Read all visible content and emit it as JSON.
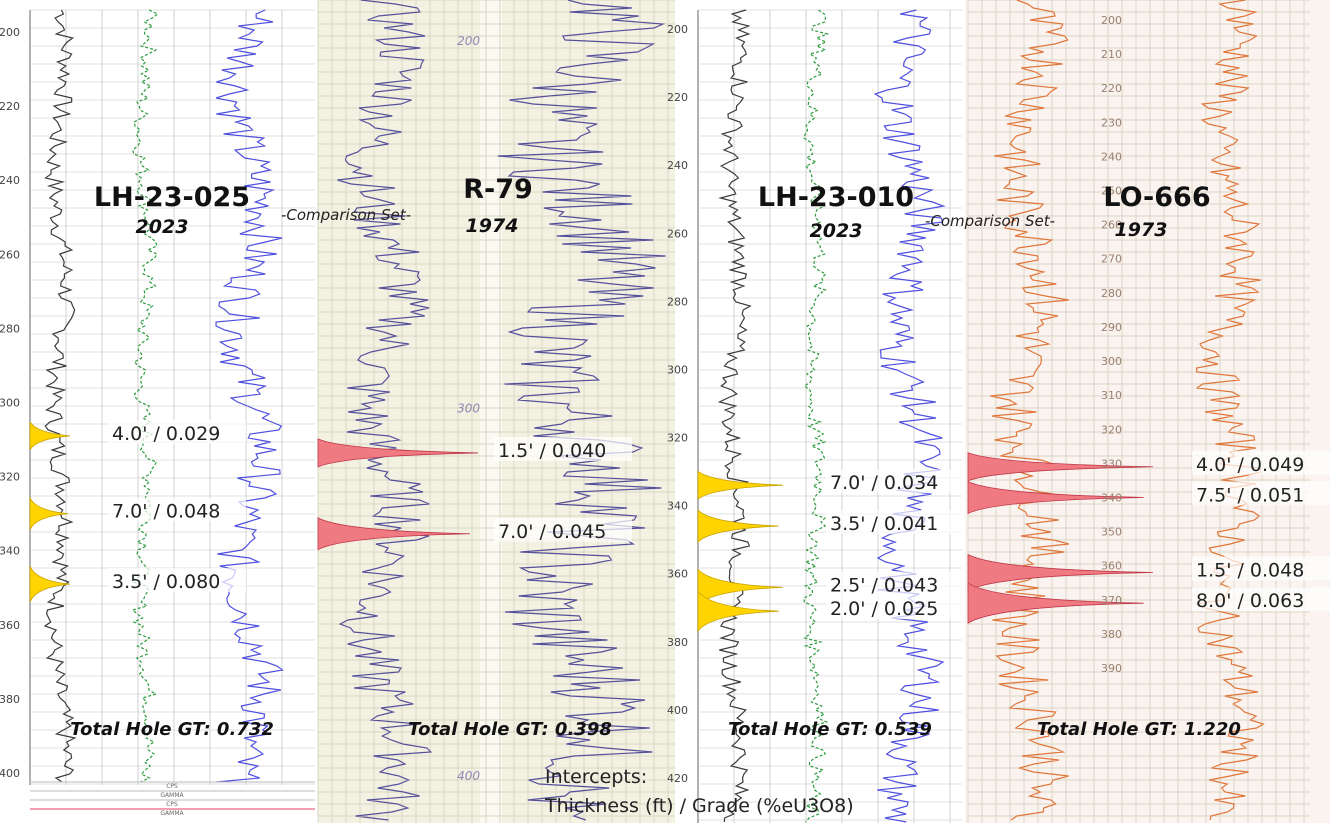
{
  "annotations": {
    "comparison_label": "-Comparison Set-",
    "intercepts_line1": "Intercepts:",
    "intercepts_line2": "Thickness (ft) / Grade (%eU3O8)"
  },
  "colors": {
    "modern_peak": "#ffd400",
    "historic_peak": "#f07a82",
    "grid_line": "#c8c8c8",
    "black_trace": "#3a3a3a",
    "green_trace": "#2c9a3c",
    "blue_trace": "#4f4fe0",
    "purple_trace": "#55509a",
    "orange_trace": "#e0763a",
    "historic_paper": "#f3f1e2"
  },
  "chart_data": [
    {
      "type": "line",
      "title": "LH-23-025",
      "subtitle": "2023",
      "y_ticks": [
        200,
        220,
        240,
        260,
        280,
        300,
        320,
        340,
        360,
        380,
        400
      ],
      "ylim": [
        195,
        405
      ],
      "intercepts": [
        {
          "label": "4.0' / 0.029",
          "depth": 309
        },
        {
          "label": "7.0' / 0.048",
          "depth": 330
        },
        {
          "label": "3.5' / 0.080",
          "depth": 349
        }
      ],
      "total": "Total Hole GT: 0.732",
      "footer_labels": [
        "CPS",
        "GAMMA",
        "CPS",
        "GAMMA"
      ]
    },
    {
      "type": "line",
      "title": "R-79",
      "subtitle": "1974",
      "y_ticks": [
        200,
        300,
        400
      ],
      "intercepts": [
        {
          "label": "1.5' / 0.040",
          "depth": 311
        },
        {
          "label": "7.0' / 0.045",
          "depth": 333
        }
      ],
      "total": "Total Hole GT: 0.398"
    },
    {
      "type": "line",
      "title": "LH-23-010",
      "subtitle": "2023",
      "y_ticks": [
        200,
        220,
        240,
        260,
        280,
        300,
        320,
        340,
        360,
        380,
        400,
        420
      ],
      "ylim": [
        197,
        425
      ],
      "intercepts": [
        {
          "label": "7.0' / 0.034",
          "depth": 334
        },
        {
          "label": "3.5' / 0.041",
          "depth": 346
        },
        {
          "label": "2.5' / 0.043",
          "depth": 364
        },
        {
          "label": "2.0' / 0.025",
          "depth": 371
        }
      ],
      "total": "Total Hole GT: 0.539"
    },
    {
      "type": "line",
      "title": "LO-666",
      "subtitle": "1973",
      "y_ticks": [
        200,
        210,
        220,
        230,
        240,
        250,
        260,
        270,
        280,
        290,
        300,
        310,
        320,
        330,
        340,
        350,
        360,
        370,
        380,
        390
      ],
      "ylim": [
        198,
        400
      ],
      "intercepts": [
        {
          "label": "4.0' / 0.049",
          "depth": 331
        },
        {
          "label": "7.5' / 0.051",
          "depth": 340
        },
        {
          "label": "1.5' / 0.048",
          "depth": 362
        },
        {
          "label": "8.0' / 0.063",
          "depth": 371
        }
      ],
      "total": "Total Hole GT: 1.220"
    }
  ]
}
